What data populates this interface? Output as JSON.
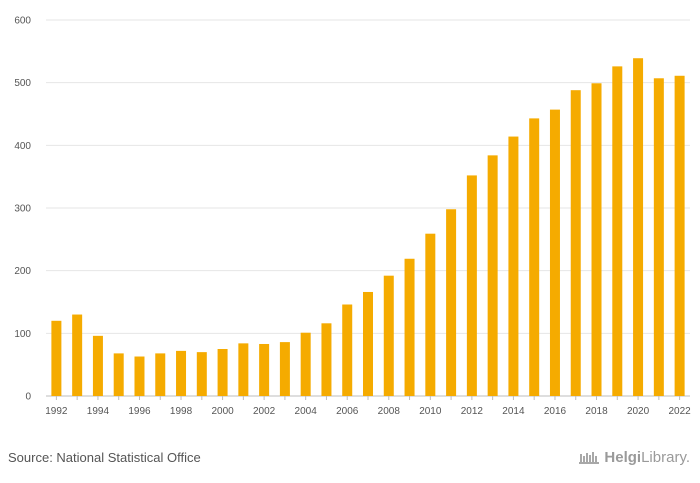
{
  "chart_data": {
    "type": "bar",
    "categories": [
      "1992",
      "1993",
      "1994",
      "1995",
      "1996",
      "1997",
      "1998",
      "1999",
      "2000",
      "2001",
      "2002",
      "2003",
      "2004",
      "2005",
      "2006",
      "2007",
      "2008",
      "2009",
      "2010",
      "2011",
      "2012",
      "2013",
      "2014",
      "2015",
      "2016",
      "2017",
      "2018",
      "2019",
      "2020",
      "2021",
      "2022"
    ],
    "values": [
      120,
      130,
      96,
      68,
      63,
      68,
      72,
      70,
      75,
      84,
      83,
      86,
      101,
      116,
      146,
      166,
      192,
      219,
      259,
      298,
      352,
      384,
      414,
      443,
      457,
      488,
      499,
      526,
      539,
      507,
      511
    ],
    "x_tick_labels": [
      "1992",
      "1994",
      "1996",
      "1998",
      "2000",
      "2002",
      "2004",
      "2006",
      "2008",
      "2010",
      "2012",
      "2014",
      "2016",
      "2018",
      "2020",
      "2022"
    ],
    "ylim": [
      0,
      600
    ],
    "y_ticks": [
      0,
      100,
      200,
      300,
      400,
      500,
      600
    ],
    "color": "#f5ab00",
    "grid": true,
    "legend": "none"
  },
  "footer": {
    "source": "Source: National Statistical Office",
    "logo_text_bold": "Helgi",
    "logo_text": "Library."
  }
}
